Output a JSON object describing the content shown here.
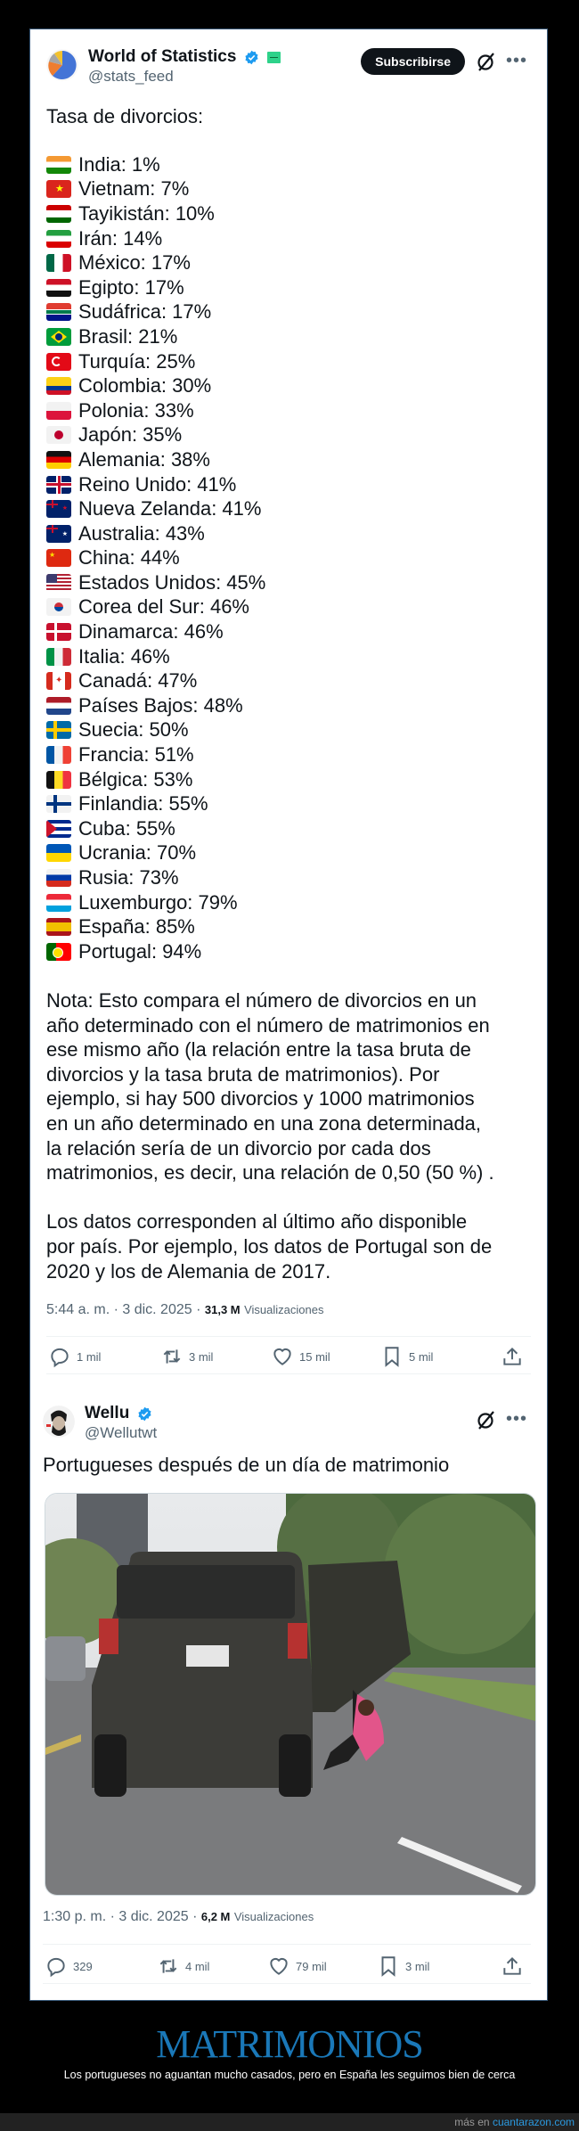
{
  "tweet1": {
    "author": {
      "name": "World of Statistics",
      "handle": "@stats_feed",
      "verified": true
    },
    "subscribe_label": "Subscribirse",
    "icons": {
      "grok": "grok-icon",
      "more": "more-icon"
    },
    "intro": "Tasa de divorcios:",
    "rates": [
      {
        "country": "India",
        "value": "1%",
        "flag": "india"
      },
      {
        "country": "Vietnam",
        "value": "7%",
        "flag": "vietnam"
      },
      {
        "country": "Tayikistán",
        "value": "10%",
        "flag": "tajikistan"
      },
      {
        "country": "Irán",
        "value": "14%",
        "flag": "iran"
      },
      {
        "country": "México",
        "value": "17%",
        "flag": "mexico"
      },
      {
        "country": "Egipto",
        "value": "17%",
        "flag": "egypt"
      },
      {
        "country": "Sudáfrica",
        "value": "17%",
        "flag": "south-africa"
      },
      {
        "country": "Brasil",
        "value": "21%",
        "flag": "brazil"
      },
      {
        "country": "Turquía",
        "value": "25%",
        "flag": "turkey"
      },
      {
        "country": "Colombia",
        "value": "30%",
        "flag": "colombia"
      },
      {
        "country": "Polonia",
        "value": "33%",
        "flag": "poland"
      },
      {
        "country": "Japón",
        "value": "35%",
        "flag": "japan"
      },
      {
        "country": "Alemania",
        "value": "38%",
        "flag": "germany"
      },
      {
        "country": "Reino Unido",
        "value": "41%",
        "flag": "uk"
      },
      {
        "country": "Nueva Zelanda",
        "value": "41%",
        "flag": "new-zealand"
      },
      {
        "country": "Australia",
        "value": "43%",
        "flag": "australia"
      },
      {
        "country": "China",
        "value": "44%",
        "flag": "china"
      },
      {
        "country": "Estados Unidos",
        "value": "45%",
        "flag": "usa"
      },
      {
        "country": "Corea del Sur",
        "value": "46%",
        "flag": "south-korea"
      },
      {
        "country": "Dinamarca",
        "value": "46%",
        "flag": "denmark"
      },
      {
        "country": "Italia",
        "value": "46%",
        "flag": "italy"
      },
      {
        "country": "Canadá",
        "value": "47%",
        "flag": "canada"
      },
      {
        "country": "Países Bajos",
        "value": "48%",
        "flag": "netherlands"
      },
      {
        "country": "Suecia",
        "value": "50%",
        "flag": "sweden"
      },
      {
        "country": "Francia",
        "value": "51%",
        "flag": "france"
      },
      {
        "country": "Bélgica",
        "value": "53%",
        "flag": "belgium"
      },
      {
        "country": "Finlandia",
        "value": "55%",
        "flag": "finland"
      },
      {
        "country": "Cuba",
        "value": "55%",
        "flag": "cuba"
      },
      {
        "country": "Ucrania",
        "value": "70%",
        "flag": "ukraine"
      },
      {
        "country": "Rusia",
        "value": "73%",
        "flag": "russia"
      },
      {
        "country": "Luxemburgo",
        "value": "79%",
        "flag": "luxembourg"
      },
      {
        "country": "España",
        "value": "85%",
        "flag": "spain"
      },
      {
        "country": "Portugal",
        "value": "94%",
        "flag": "portugal"
      }
    ],
    "note_lines": [
      "Nota: Esto compara el número de divorcios en un",
      "año determinado con el número de matrimonios en",
      "ese mismo año (la relación entre la tasa bruta de",
      "divorcios y la tasa bruta de matrimonios). Por",
      "ejemplo, si hay 500 divorcios y 1000 matrimonios",
      "en un año determinado en una zona determinada,",
      "la relación sería de un divorcio por cada dos",
      "matrimonios, es decir, una relación de 0,50 (50 %) .",
      "",
      "Los datos corresponden al último año disponible",
      "por país. Por ejemplo, los datos de Portugal son de",
      "2020 y los de Alemania de 2017."
    ],
    "timestamp": "5:44 a. m. · 3 dic. 2025 · ",
    "views_count": "31,3 M",
    "views_label": "Visualizaciones",
    "stats": {
      "replies": "1 mil",
      "reposts": "3 mil",
      "likes": "15 mil",
      "bookmarks": "5 mil"
    }
  },
  "tweet2": {
    "author": {
      "name": "Wellu",
      "handle": "@Wellutwt",
      "verified": true
    },
    "icons": {
      "grok": "grok-icon",
      "more": "more-icon"
    },
    "text": "Portugueses después de un día de matrimonio",
    "photo_alt": "Mujer cayendo de un Jeep en marcha en una carretera",
    "timestamp": "1:30 p. m. · 3 dic. 2025 · ",
    "views_count": "6,2 M",
    "views_label": "Visualizaciones",
    "stats": {
      "replies": "329",
      "reposts": "4 mil",
      "likes": "79 mil",
      "bookmarks": "3 mil"
    }
  },
  "footer": {
    "title": "MATRIMONIOS",
    "subtitle": "Los portugueses no aguantan mucho casados, pero en España les seguimos bien de cerca",
    "more_prefix": "más en ",
    "site": "cuantarazon.com"
  },
  "colors": {
    "background": "#000000",
    "card": "#ffffff",
    "text": "#0f1419",
    "muted": "#536471",
    "verified": "#1d9bf0",
    "footer_title": "#1a78b8",
    "link": "#2b9ae0"
  }
}
